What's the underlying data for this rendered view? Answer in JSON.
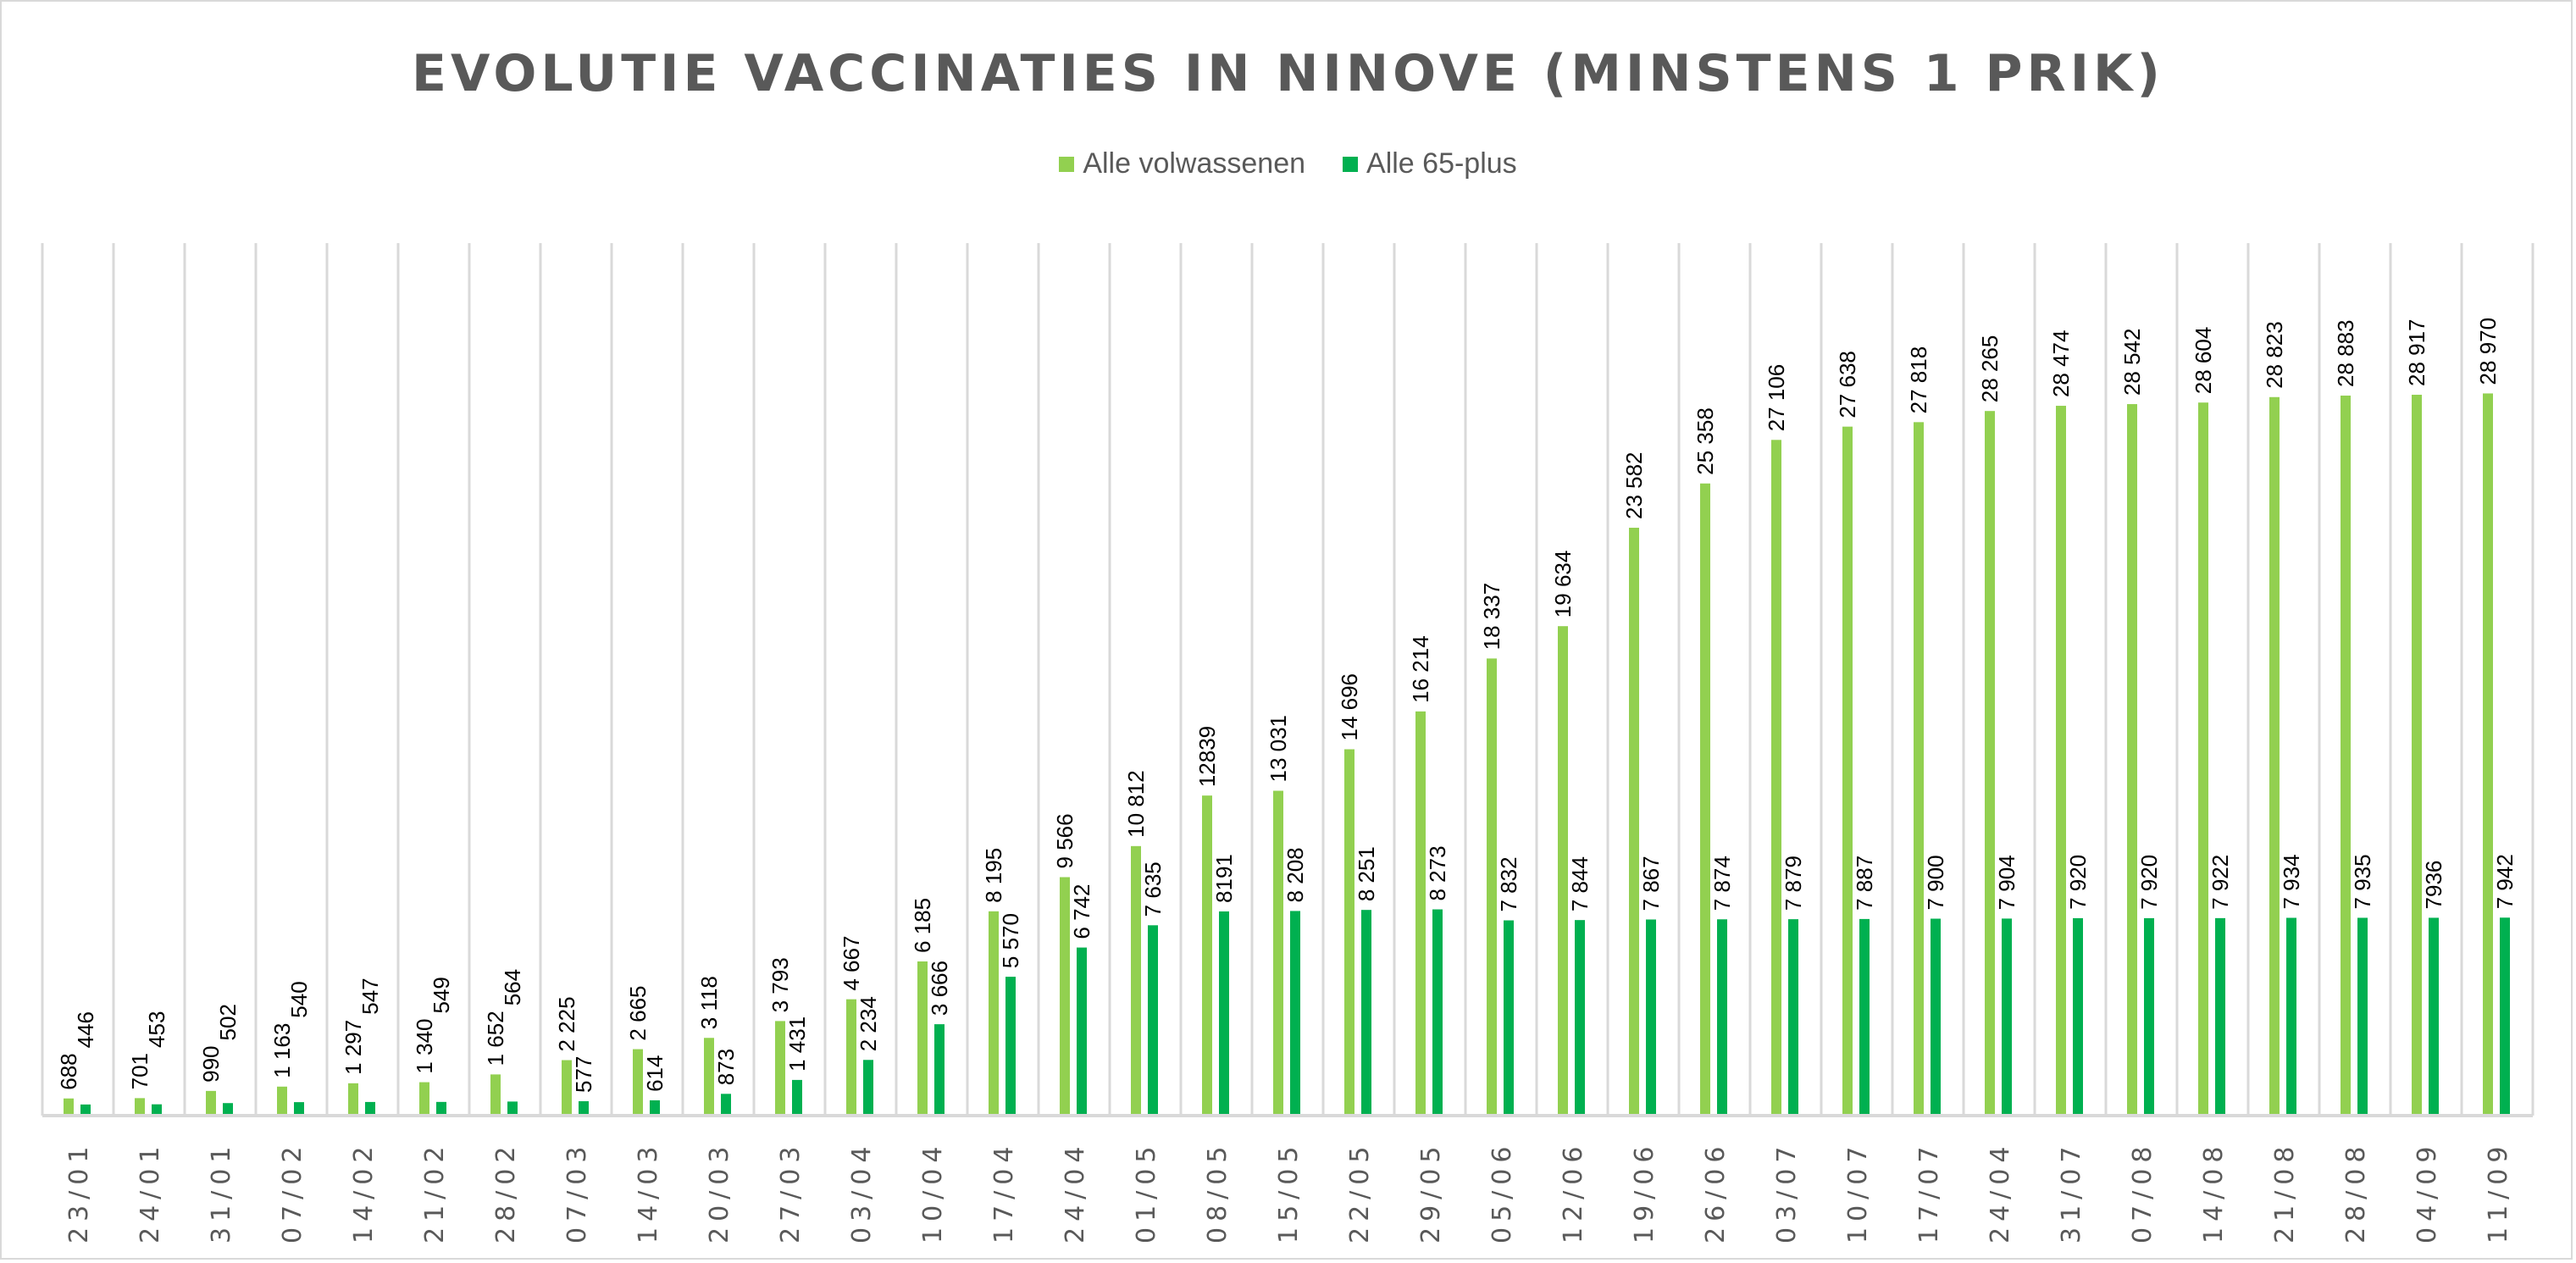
{
  "chart_data": {
    "type": "bar",
    "title": "EVOLUTIE VACCINATIES IN NINOVE (MINSTENS 1 PRIK)",
    "xlabel": "",
    "ylabel": "",
    "ylim": [
      0,
      35000
    ],
    "grid": "vertical category separators",
    "legend_position": "top-center",
    "categories": [
      "23/01",
      "24/01",
      "31/01",
      "07/02",
      "14/02",
      "21/02",
      "28/02",
      "07/03",
      "14/03",
      "20/03",
      "27/03",
      "03/04",
      "10/04",
      "17/04",
      "24/04",
      "01/05",
      "08/05",
      "15/05",
      "22/05",
      "29/05",
      "05/06",
      "12/06",
      "19/06",
      "26/06",
      "03/07",
      "10/07",
      "17/07",
      "24/04",
      "31/07",
      "07/08",
      "14/08",
      "21/08",
      "28/08",
      "04/09",
      "11/09"
    ],
    "series": [
      {
        "name": "Alle volwassenen",
        "color": "#92d050",
        "values": [
          688,
          701,
          990,
          1163,
          1297,
          1340,
          1652,
          2225,
          2665,
          3118,
          3793,
          4667,
          6185,
          8195,
          9566,
          10812,
          12839,
          13031,
          14696,
          16214,
          18337,
          19634,
          23582,
          25358,
          27106,
          27638,
          27818,
          28265,
          28474,
          28542,
          28604,
          28823,
          28883,
          28917,
          28970
        ],
        "labels": [
          "688",
          "701",
          "990",
          "1 163",
          "1 297",
          "1 340",
          "1 652",
          "2 225",
          "2 665",
          "3 118",
          "3 793",
          "4 667",
          "6 185",
          "8 195",
          "9 566",
          "10 812",
          "12839",
          "13 031",
          "14 696",
          "16 214",
          "18 337",
          "19 634",
          "23 582",
          "25 358",
          "27 106",
          "27 638",
          "27 818",
          "28 265",
          "28 474",
          "28 542",
          "28 604",
          "28 823",
          "28 883",
          "28 917",
          "28 970"
        ]
      },
      {
        "name": "Alle 65-plus",
        "color": "#00b050",
        "values": [
          446,
          453,
          502,
          540,
          547,
          549,
          564,
          577,
          614,
          873,
          1431,
          2234,
          3666,
          5570,
          6742,
          7635,
          8191,
          8208,
          8251,
          8273,
          7832,
          7844,
          7867,
          7874,
          7879,
          7887,
          7900,
          7904,
          7920,
          7920,
          7922,
          7934,
          7935,
          7936,
          7942
        ],
        "labels": [
          "446",
          "453",
          "502",
          "540",
          "547",
          "549",
          "564",
          "577",
          "614",
          "873",
          "1 431",
          "2 234",
          "3 666",
          "5 570",
          "6 742",
          "7 635",
          "8191",
          "8 208",
          "8 251",
          "8 273",
          "7 832",
          "7 844",
          "7 867",
          "7 874",
          "7 879",
          "7 887",
          "7 900",
          "7 904",
          "7 920",
          "7 920",
          "7 922",
          "7 934",
          "7 935",
          "7936",
          "7 942"
        ]
      }
    ]
  }
}
